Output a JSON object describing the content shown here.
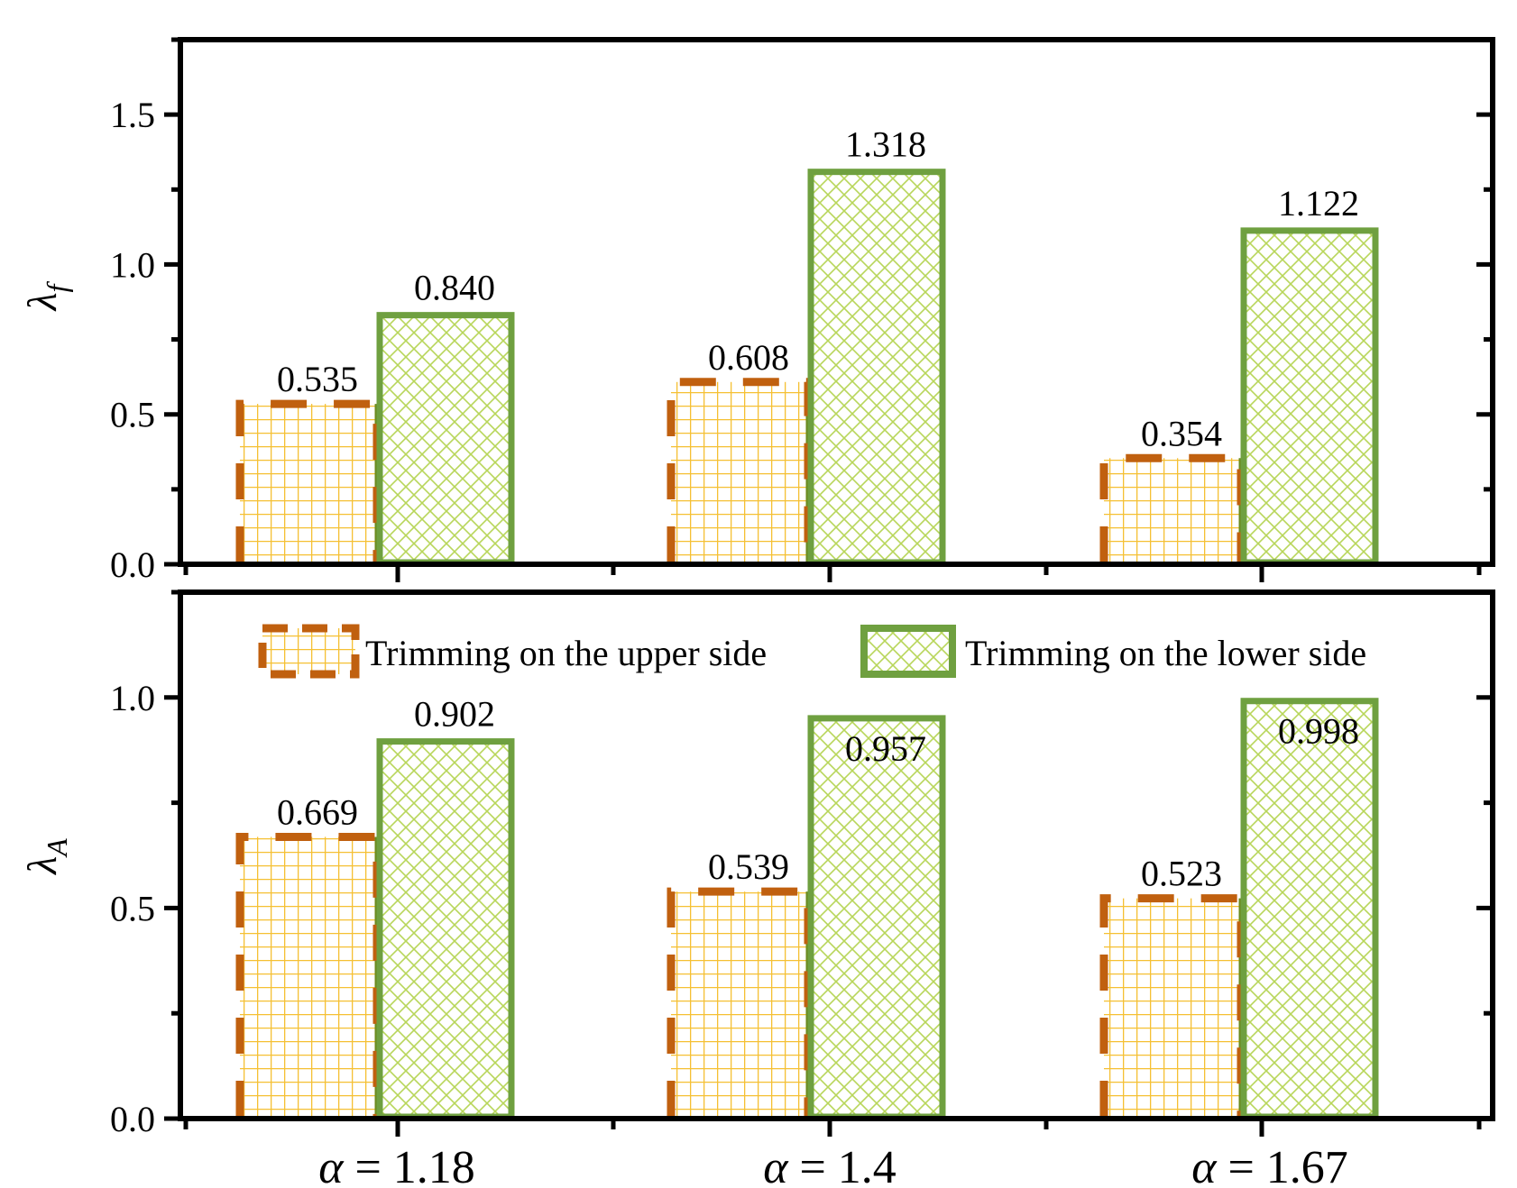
{
  "chart_data": [
    {
      "type": "bar",
      "panel": "top",
      "ylabel": "λ",
      "ylabel_sub": "f",
      "ylim": [
        0,
        1.75
      ],
      "yticks": [
        0.0,
        0.5,
        1.0,
        1.5
      ],
      "ytick_labels": [
        "0.0",
        "0.5",
        "1.0",
        "1.5"
      ],
      "series": [
        {
          "name": "Trimming on the upper side",
          "values": [
            0.535,
            0.608,
            0.354
          ],
          "labels": [
            "0.535",
            "0.608",
            "0.354"
          ]
        },
        {
          "name": "Trimming on the lower side",
          "values": [
            0.84,
            1.318,
            1.122
          ],
          "labels": [
            "0.840",
            "1.318",
            "1.122"
          ]
        }
      ],
      "grid": false
    },
    {
      "type": "bar",
      "panel": "bottom",
      "ylabel": "λ",
      "ylabel_sub": "A",
      "ylim": [
        0,
        1.25
      ],
      "yticks": [
        0.0,
        0.5,
        1.0
      ],
      "ytick_labels": [
        "0.0",
        "0.5",
        "1.0"
      ],
      "series": [
        {
          "name": "Trimming on the upper side",
          "values": [
            0.669,
            0.539,
            0.523
          ],
          "labels": [
            "0.669",
            "0.539",
            "0.523"
          ]
        },
        {
          "name": "Trimming on the lower side",
          "values": [
            0.902,
            0.957,
            0.998
          ],
          "labels": [
            "0.902",
            "0.957",
            "0.998"
          ]
        }
      ],
      "legend": "top",
      "grid": false
    }
  ],
  "categories": [
    {
      "symbol": "α",
      "eq": " = 1.18"
    },
    {
      "symbol": "α",
      "eq": " = 1.4"
    },
    {
      "symbol": "α",
      "eq": " = 1.67"
    }
  ],
  "legend": [
    {
      "label": "Trimming on the upper side"
    },
    {
      "label": "Trimming on the lower side"
    }
  ],
  "colors": {
    "upper_edge": "#c0600f",
    "upper_fill_line": "#f5c033",
    "upper_center_line": "#6b8a1e",
    "lower_edge": "#6fa040",
    "lower_fill_line": "#b8d65a",
    "axis": "#000000"
  }
}
